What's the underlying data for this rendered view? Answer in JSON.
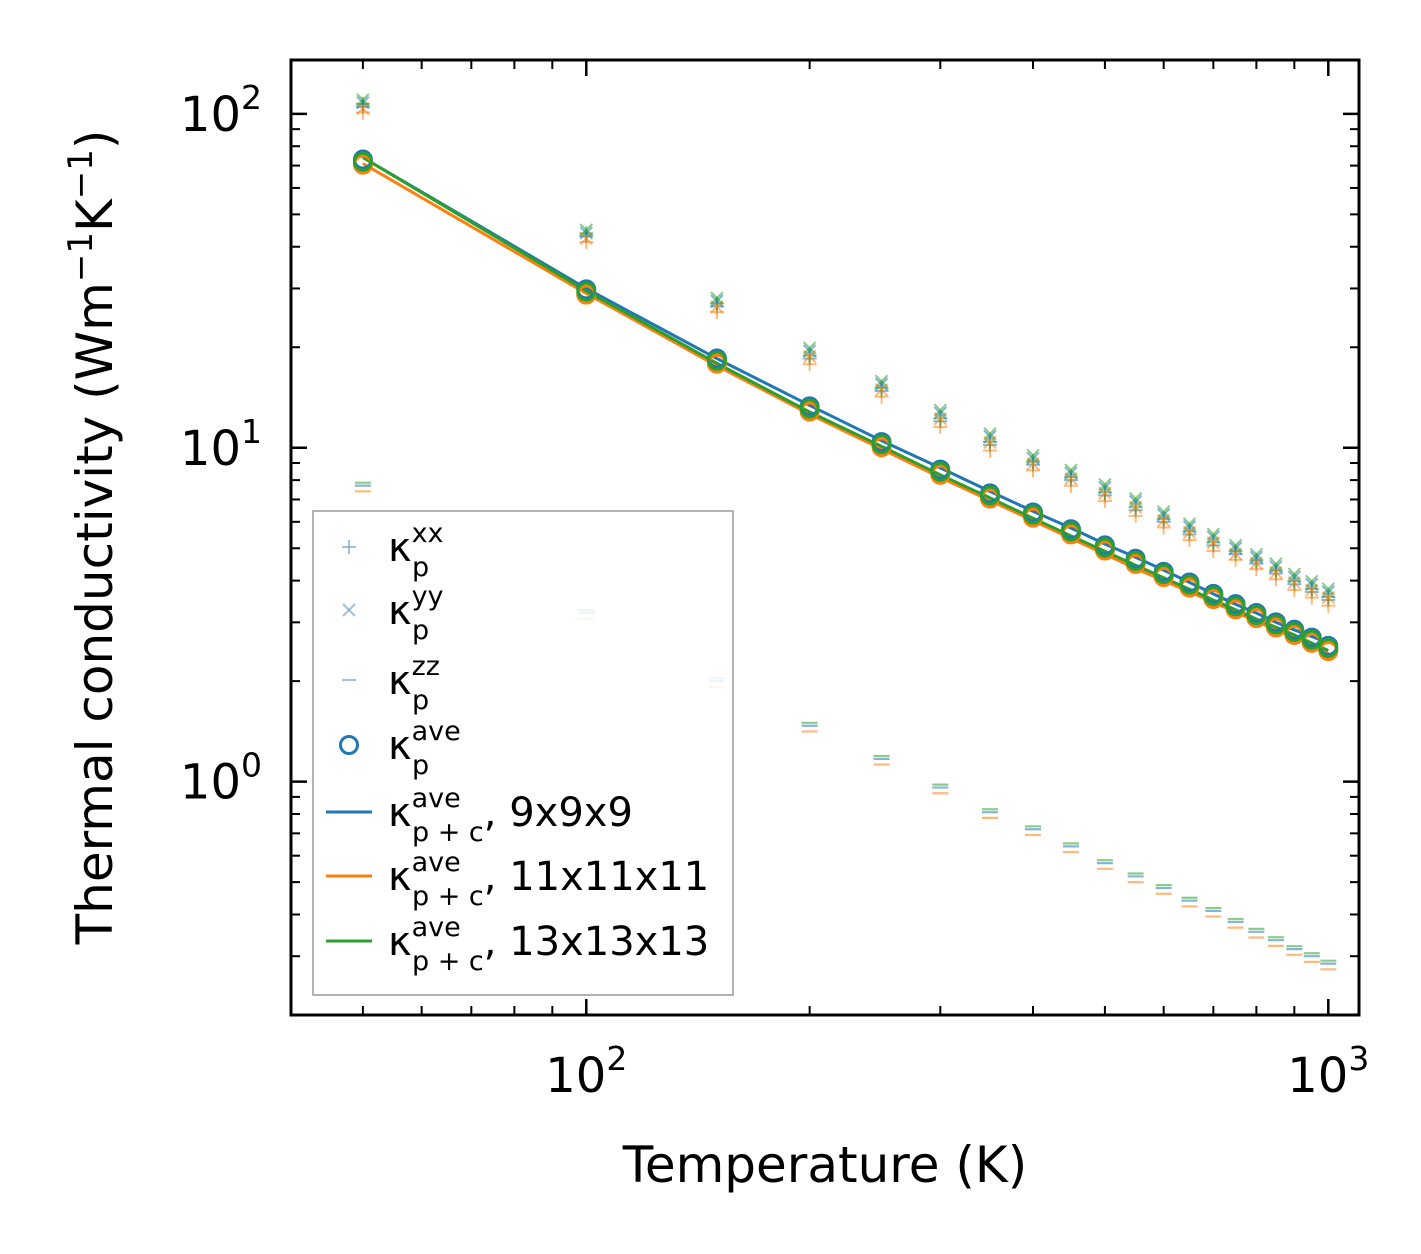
{
  "chart_data": {
    "type": "scatter",
    "xscale": "log",
    "yscale": "log",
    "xlim": [
      40,
      1100
    ],
    "ylim": [
      0.2,
      145
    ],
    "xlabel": "Temperature (K)",
    "ylabel_main": "Thermal conductivity (Wm",
    "ylabel_sup1": "−1",
    "ylabel_mid": "K",
    "ylabel_sup2": "−1",
    "ylabel_end": ")",
    "xticks": [
      {
        "value": 100,
        "base": "10",
        "exp": "2"
      },
      {
        "value": 1000,
        "base": "10",
        "exp": "3"
      }
    ],
    "yticks": [
      {
        "value": 1,
        "base": "10",
        "exp": "0"
      },
      {
        "value": 10,
        "base": "10",
        "exp": "1"
      },
      {
        "value": 100,
        "base": "10",
        "exp": "2"
      }
    ],
    "x": [
      50,
      100,
      150,
      200,
      250,
      300,
      350,
      400,
      450,
      500,
      550,
      600,
      650,
      700,
      750,
      800,
      850,
      900,
      950,
      1000
    ],
    "colors": {
      "blue": "#1f77b4",
      "orange": "#ff7f0e",
      "green": "#2ca02c"
    },
    "series": [
      {
        "name": "kappa_p_xx",
        "role": "marker-plus",
        "alpha": 0.5,
        "values": [
          105,
          43,
          26.5,
          18.5,
          14.8,
          12,
          10.2,
          8.9,
          8,
          7.2,
          6.5,
          6,
          5.5,
          5.1,
          4.8,
          4.5,
          4.2,
          3.9,
          3.7,
          3.5
        ]
      },
      {
        "name": "kappa_p_yy",
        "role": "marker-x",
        "alpha": 0.5,
        "values": [
          108,
          44,
          27.5,
          19.5,
          15.5,
          12.7,
          10.8,
          9.3,
          8.4,
          7.6,
          6.9,
          6.3,
          5.8,
          5.4,
          5,
          4.7,
          4.4,
          4.1,
          3.9,
          3.7
        ]
      },
      {
        "name": "kappa_p_zz",
        "role": "marker-dash",
        "alpha": 0.5,
        "values": [
          7.7,
          3.2,
          2,
          1.47,
          1.17,
          0.96,
          0.81,
          0.72,
          0.64,
          0.57,
          0.52,
          0.48,
          0.44,
          0.41,
          0.38,
          0.355,
          0.335,
          0.315,
          0.3,
          0.285
        ]
      },
      {
        "name": "kappa_p_ave",
        "role": "marker-circle",
        "values": [
          73,
          29.8,
          18.5,
          13.3,
          10.4,
          8.6,
          7.3,
          6.4,
          5.7,
          5.1,
          4.65,
          4.25,
          3.95,
          3.65,
          3.4,
          3.2,
          3,
          2.85,
          2.7,
          2.55
        ]
      },
      {
        "name": "kappa_pc_ave_9",
        "role": "line",
        "values": [
          74,
          30,
          18.5,
          13.4,
          10.5,
          8.7,
          7.4,
          6.45,
          5.75,
          5.15,
          4.7,
          4.3,
          3.95,
          3.65,
          3.4,
          3.2,
          3,
          2.85,
          2.72,
          2.6
        ]
      },
      {
        "name": "kappa_pc_ave_11",
        "role": "line",
        "values": [
          71,
          29,
          17.6,
          12.6,
          9.9,
          8.15,
          6.95,
          6.05,
          5.35,
          4.8,
          4.35,
          4,
          3.7,
          3.45,
          3.22,
          3.02,
          2.85,
          2.7,
          2.56,
          2.42
        ]
      },
      {
        "name": "kappa_pc_ave_13",
        "role": "line",
        "values": [
          74,
          29.5,
          17.9,
          12.8,
          10.1,
          8.3,
          7.08,
          6.15,
          5.45,
          4.9,
          4.45,
          4.08,
          3.77,
          3.5,
          3.27,
          3.07,
          2.9,
          2.75,
          2.6,
          2.47
        ]
      }
    ],
    "legend": {
      "placement": "lower-left",
      "entries": [
        {
          "symbol": "κ",
          "sub": "p",
          "sup": "xx",
          "suffix": ""
        },
        {
          "symbol": "κ",
          "sub": "p",
          "sup": "yy",
          "suffix": ""
        },
        {
          "symbol": "κ",
          "sub": "p",
          "sup": "zz",
          "suffix": ""
        },
        {
          "symbol": "κ",
          "sub": "p",
          "sup": "ave",
          "suffix": ""
        },
        {
          "symbol": "κ",
          "sub": "p + c",
          "sup": "ave",
          "suffix": ", 9x9x9"
        },
        {
          "symbol": "κ",
          "sub": "p + c",
          "sup": "ave",
          "suffix": ", 11x11x11"
        },
        {
          "symbol": "κ",
          "sub": "p + c",
          "sup": "ave",
          "suffix": ", 13x13x13"
        }
      ]
    }
  }
}
